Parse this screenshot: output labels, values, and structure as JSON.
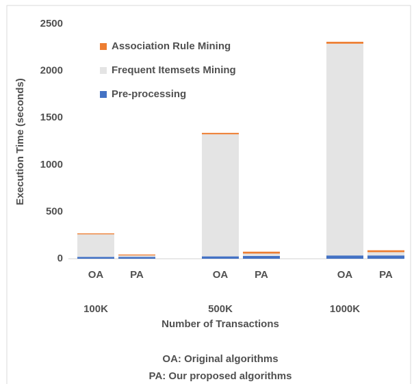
{
  "chart_data": {
    "type": "stacked_bar",
    "ylabel": "Execution Time (seconds)",
    "xlabel": "Number of Transactions",
    "categories": [
      "OA",
      "PA",
      "OA",
      "PA",
      "OA",
      "PA"
    ],
    "groups": [
      "100K",
      "500K",
      "1000K"
    ],
    "series": [
      {
        "name": "Pre-processing",
        "color": "#4472c4",
        "values": [
          20,
          20,
          25,
          30,
          35,
          35
        ]
      },
      {
        "name": "Frequent Itemsets Mining",
        "color": "#e4e4e4",
        "values": [
          240,
          15,
          1300,
          25,
          2255,
          35
        ]
      },
      {
        "name": "Association Rule Mining",
        "color": "#ed7d31",
        "values": [
          10,
          10,
          15,
          20,
          20,
          20
        ]
      }
    ],
    "ylim": [
      0,
      2500
    ],
    "yticks": [
      0,
      500,
      1000,
      1500,
      2000,
      2500
    ],
    "notes": [
      "OA: Original algorithms",
      "PA: Our proposed algorithms"
    ]
  }
}
